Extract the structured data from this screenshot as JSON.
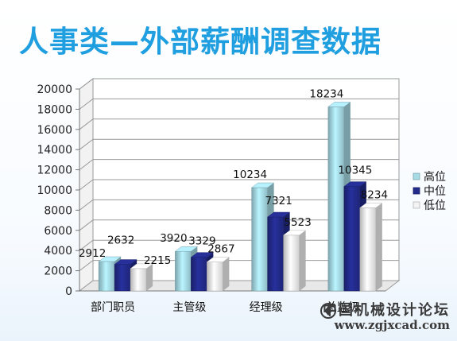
{
  "slide": {
    "title": "人事类—外部薪酬调查数据"
  },
  "chart_data": {
    "type": "bar",
    "categories": [
      "部门职员",
      "主管级",
      "经理级",
      "总监级"
    ],
    "series": [
      {
        "name": "高位",
        "color": "#a6dbe6",
        "values": [
          2912,
          3920,
          10234,
          18234
        ]
      },
      {
        "name": "中位",
        "color": "#232b8c",
        "values": [
          2632,
          3329,
          7321,
          10345
        ]
      },
      {
        "name": "低位",
        "color": "#f3f3f3",
        "values": [
          2215,
          2867,
          5523,
          8234
        ]
      }
    ],
    "ylim": [
      0,
      20000
    ],
    "yticks": [
      0,
      2000,
      4000,
      6000,
      8000,
      10000,
      12000,
      14000,
      16000,
      18000,
      20000
    ],
    "grid": true,
    "legend": "right"
  },
  "watermark": {
    "site_name": "中国机械设计论坛",
    "url": "www.zgjxcad.com"
  }
}
